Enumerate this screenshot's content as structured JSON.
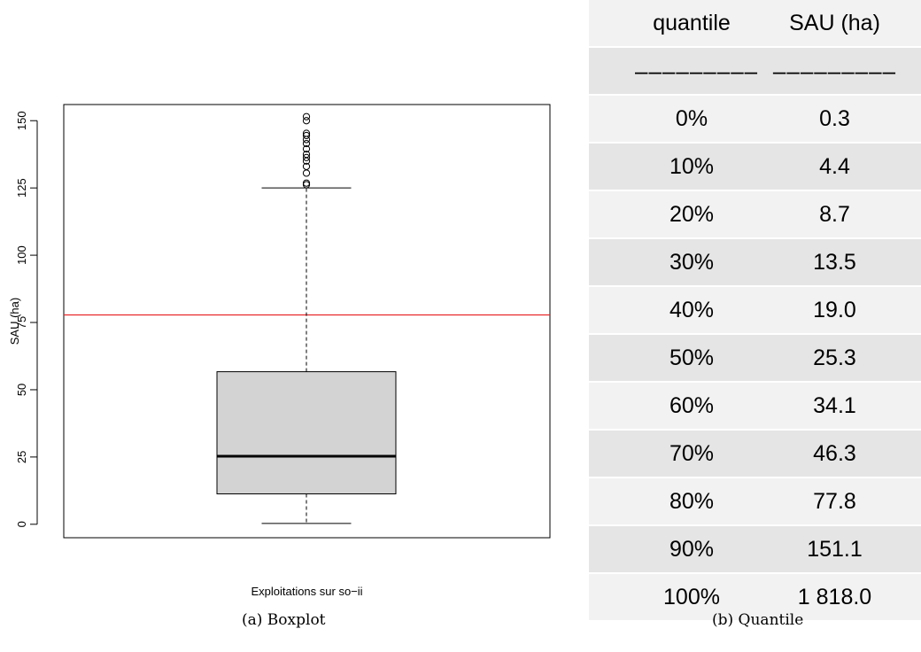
{
  "chart_data": [
    {
      "type": "box",
      "xlabel": "Exploitations sur so−ii",
      "ylabel": "SAU (ha)",
      "ylim": [
        -5,
        156
      ],
      "yticks": [
        0,
        25,
        50,
        75,
        100,
        125,
        150
      ],
      "box": {
        "min": 0.3,
        "q1": 11.3,
        "median": 25.3,
        "q3": 56.7,
        "whisker_high": 125.0
      },
      "outliers": [
        126.2,
        126.8,
        130.5,
        133.0,
        135.0,
        136.3,
        137.5,
        139.5,
        141.5,
        143.0,
        144.5,
        145.3,
        150.0,
        151.5
      ],
      "reference_line": {
        "y": 77.8,
        "color": "#e8262a"
      },
      "box_fill": "#d3d3d3",
      "grid": false
    },
    {
      "type": "table",
      "columns": [
        "quantile",
        "SAU (ha)"
      ],
      "separator": [
        "–––––––––",
        "–––––––––"
      ],
      "rows": [
        [
          "0%",
          "0.3"
        ],
        [
          "10%",
          "4.4"
        ],
        [
          "20%",
          "8.7"
        ],
        [
          "30%",
          "13.5"
        ],
        [
          "40%",
          "19.0"
        ],
        [
          "50%",
          "25.3"
        ],
        [
          "60%",
          "34.1"
        ],
        [
          "70%",
          "46.3"
        ],
        [
          "80%",
          "77.8"
        ],
        [
          "90%",
          "151.1"
        ],
        [
          "100%",
          "1 818.0"
        ]
      ],
      "row_colors": [
        "#f2f2f2",
        "#e5e5e5"
      ]
    }
  ],
  "captions": {
    "a": "(a) Boxplot",
    "b": "(b) Quantile"
  }
}
